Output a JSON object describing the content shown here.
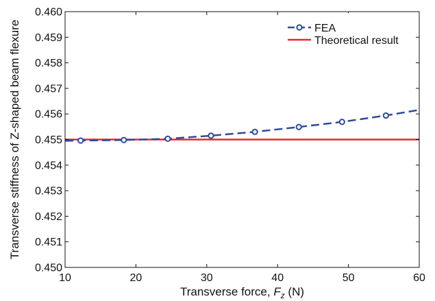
{
  "chart_data": {
    "type": "line",
    "title": "",
    "xlabel": "Transverse force, ",
    "xlabel_symbol": "F",
    "xlabel_subscript": "z",
    "xlabel_unit": " (N)",
    "ylabel": "Transverse stiffness of Z-shaped beam flexure",
    "xlim": [
      10,
      60
    ],
    "ylim": [
      0.45,
      0.46
    ],
    "x_ticks": [
      "10",
      "20",
      "30",
      "40",
      "50",
      "60"
    ],
    "y_ticks": [
      "0.450",
      "0.451",
      "0.452",
      "0.453",
      "0.454",
      "0.455",
      "0.456",
      "0.457",
      "0.458",
      "0.459",
      "0.460"
    ],
    "grid": false,
    "legend_position": "top-right",
    "series": [
      {
        "name": "FEA",
        "style": "dashed-circle-markers",
        "color": "#2e4a9c",
        "x": [
          10,
          12.2,
          18.3,
          24.5,
          30.6,
          36.8,
          43.0,
          49.1,
          55.3,
          60
        ],
        "y": [
          0.45495,
          0.45496,
          0.45498,
          0.45503,
          0.45515,
          0.4553,
          0.45549,
          0.45569,
          0.45594,
          0.45616
        ],
        "markers": [
          false,
          true,
          true,
          true,
          true,
          true,
          true,
          true,
          true,
          false
        ]
      },
      {
        "name": "Theoretical result",
        "style": "solid",
        "color": "#e8262b",
        "x": [
          10,
          60
        ],
        "y": [
          0.455,
          0.455
        ]
      }
    ]
  }
}
